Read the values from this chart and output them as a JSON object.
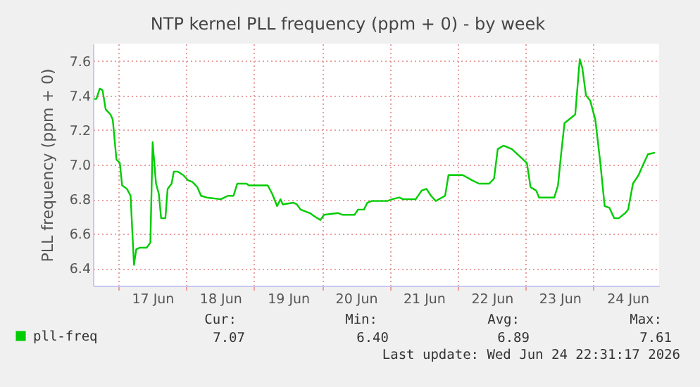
{
  "chart_data": {
    "type": "line",
    "title": "NTP kernel PLL frequency (ppm + 0) - by week",
    "ylabel": "PLL frequency (ppm + 0)",
    "x": [
      "2026-06-16T15:24",
      "2026-06-16T16:12",
      "2026-06-16T17:24",
      "2026-06-16T18:24",
      "2026-06-16T19:30",
      "2026-06-16T21:12",
      "2026-06-16T22:00",
      "2026-06-16T23:18",
      "2026-06-17T00:30",
      "2026-06-17T01:18",
      "2026-06-17T03:00",
      "2026-06-17T04:18",
      "2026-06-17T05:30",
      "2026-06-17T06:18",
      "2026-06-17T07:36",
      "2026-06-17T10:00",
      "2026-06-17T11:18",
      "2026-06-17T12:06",
      "2026-06-17T13:18",
      "2026-06-17T14:18",
      "2026-06-17T15:06",
      "2026-06-17T16:36",
      "2026-06-17T17:24",
      "2026-06-17T18:48",
      "2026-06-17T19:36",
      "2026-06-17T20:54",
      "2026-06-17T22:54",
      "2026-06-18T00:36",
      "2026-06-18T02:12",
      "2026-06-18T03:54",
      "2026-06-18T05:12",
      "2026-06-18T07:12",
      "2026-06-18T12:12",
      "2026-06-18T14:42",
      "2026-06-18T16:42",
      "2026-06-18T18:00",
      "2026-06-18T21:18",
      "2026-06-18T22:06",
      "2026-06-19T04:48",
      "2026-06-19T06:24",
      "2026-06-19T08:06",
      "2026-06-19T09:18",
      "2026-06-19T10:06",
      "2026-06-19T13:54",
      "2026-06-19T15:06",
      "2026-06-19T16:24",
      "2026-06-19T19:42",
      "2026-06-19T21:24",
      "2026-06-19T23:24",
      "2026-06-20T00:42",
      "2026-06-20T05:42",
      "2026-06-20T07:18",
      "2026-06-20T11:30",
      "2026-06-20T12:42",
      "2026-06-20T14:48",
      "2026-06-20T16:00",
      "2026-06-20T17:36",
      "2026-06-20T23:06",
      "2026-06-21T00:48",
      "2026-06-21T03:18",
      "2026-06-21T04:36",
      "2026-06-21T09:06",
      "2026-06-21T11:12",
      "2026-06-21T12:54",
      "2026-06-21T14:30",
      "2026-06-21T16:12",
      "2026-06-21T19:30",
      "2026-06-21T20:42",
      "2026-06-22T01:42",
      "2026-06-22T05:00",
      "2026-06-22T07:30",
      "2026-06-22T11:06",
      "2026-06-22T12:48",
      "2026-06-22T14:06",
      "2026-06-22T16:06",
      "2026-06-22T19:06",
      "2026-06-22T22:24",
      "2026-06-23T00:24",
      "2026-06-23T01:42",
      "2026-06-23T03:42",
      "2026-06-23T04:42",
      "2026-06-23T10:06",
      "2026-06-23T11:24",
      "2026-06-23T12:30",
      "2026-06-23T13:42",
      "2026-06-23T16:42",
      "2026-06-23T17:30",
      "2026-06-23T19:06",
      "2026-06-23T20:00",
      "2026-06-23T21:18",
      "2026-06-23T22:48",
      "2026-06-24T00:36",
      "2026-06-24T02:18",
      "2026-06-24T03:54",
      "2026-06-24T05:36",
      "2026-06-24T07:18",
      "2026-06-24T08:54",
      "2026-06-24T11:12",
      "2026-06-24T12:12",
      "2026-06-24T13:54",
      "2026-06-24T15:54",
      "2026-06-24T17:30",
      "2026-06-24T19:12",
      "2026-06-24T21:42"
    ],
    "series": [
      {
        "name": "pll-freq",
        "color": "#00cc00",
        "values": [
          7.38,
          7.38,
          7.44,
          7.43,
          7.32,
          7.29,
          7.26,
          7.03,
          7.01,
          6.88,
          6.86,
          6.82,
          6.42,
          6.51,
          6.52,
          6.52,
          6.55,
          7.13,
          6.89,
          6.83,
          6.69,
          6.69,
          6.86,
          6.89,
          6.96,
          6.96,
          6.94,
          6.91,
          6.9,
          6.87,
          6.82,
          6.81,
          6.8,
          6.82,
          6.82,
          6.89,
          6.89,
          6.88,
          6.88,
          6.83,
          6.76,
          6.8,
          6.77,
          6.78,
          6.77,
          6.74,
          6.72,
          6.7,
          6.68,
          6.71,
          6.72,
          6.71,
          6.71,
          6.74,
          6.74,
          6.78,
          6.79,
          6.79,
          6.8,
          6.81,
          6.8,
          6.8,
          6.85,
          6.86,
          6.82,
          6.79,
          6.82,
          6.94,
          6.94,
          6.91,
          6.89,
          6.89,
          6.92,
          7.09,
          7.11,
          7.09,
          7.04,
          7.01,
          6.87,
          6.85,
          6.81,
          6.81,
          6.88,
          7.06,
          7.24,
          7.28,
          7.29,
          7.61,
          7.56,
          7.4,
          7.37,
          7.26,
          7.02,
          6.76,
          6.75,
          6.69,
          6.69,
          6.72,
          6.74,
          6.89,
          6.94,
          7.0,
          7.06,
          7.07
        ]
      }
    ],
    "xlim": [
      "2026-06-16T15:00",
      "2026-06-24T23:10"
    ],
    "xticks": [
      {
        "value": "2026-06-17T00:00",
        "label": null
      },
      {
        "value": "2026-06-17T12:00",
        "label": "17 Jun"
      },
      {
        "value": "2026-06-18T00:00",
        "label": null
      },
      {
        "value": "2026-06-18T12:00",
        "label": "18 Jun"
      },
      {
        "value": "2026-06-19T00:00",
        "label": null
      },
      {
        "value": "2026-06-19T12:00",
        "label": "19 Jun"
      },
      {
        "value": "2026-06-20T00:00",
        "label": null
      },
      {
        "value": "2026-06-20T12:00",
        "label": "20 Jun"
      },
      {
        "value": "2026-06-21T00:00",
        "label": null
      },
      {
        "value": "2026-06-21T12:00",
        "label": "21 Jun"
      },
      {
        "value": "2026-06-22T00:00",
        "label": null
      },
      {
        "value": "2026-06-22T12:00",
        "label": "22 Jun"
      },
      {
        "value": "2026-06-23T00:00",
        "label": null
      },
      {
        "value": "2026-06-23T12:00",
        "label": "23 Jun"
      },
      {
        "value": "2026-06-24T00:00",
        "label": null
      },
      {
        "value": "2026-06-24T12:00",
        "label": "24 Jun"
      }
    ],
    "ylim": [
      6.3,
      7.7
    ],
    "yticks": [
      6.4,
      6.6,
      6.8,
      {
        "value": 7,
        "label": "7.0"
      },
      7.2,
      7.4,
      7.6
    ],
    "grid": true,
    "legend": "bottom left",
    "annotations": [
      "Cur:",
      "7.07",
      "Min:",
      "6.40",
      "Avg:",
      "6.89",
      "Max:",
      "7.61",
      "Last update: Wed Jun 24 22:31:17 2026"
    ]
  }
}
